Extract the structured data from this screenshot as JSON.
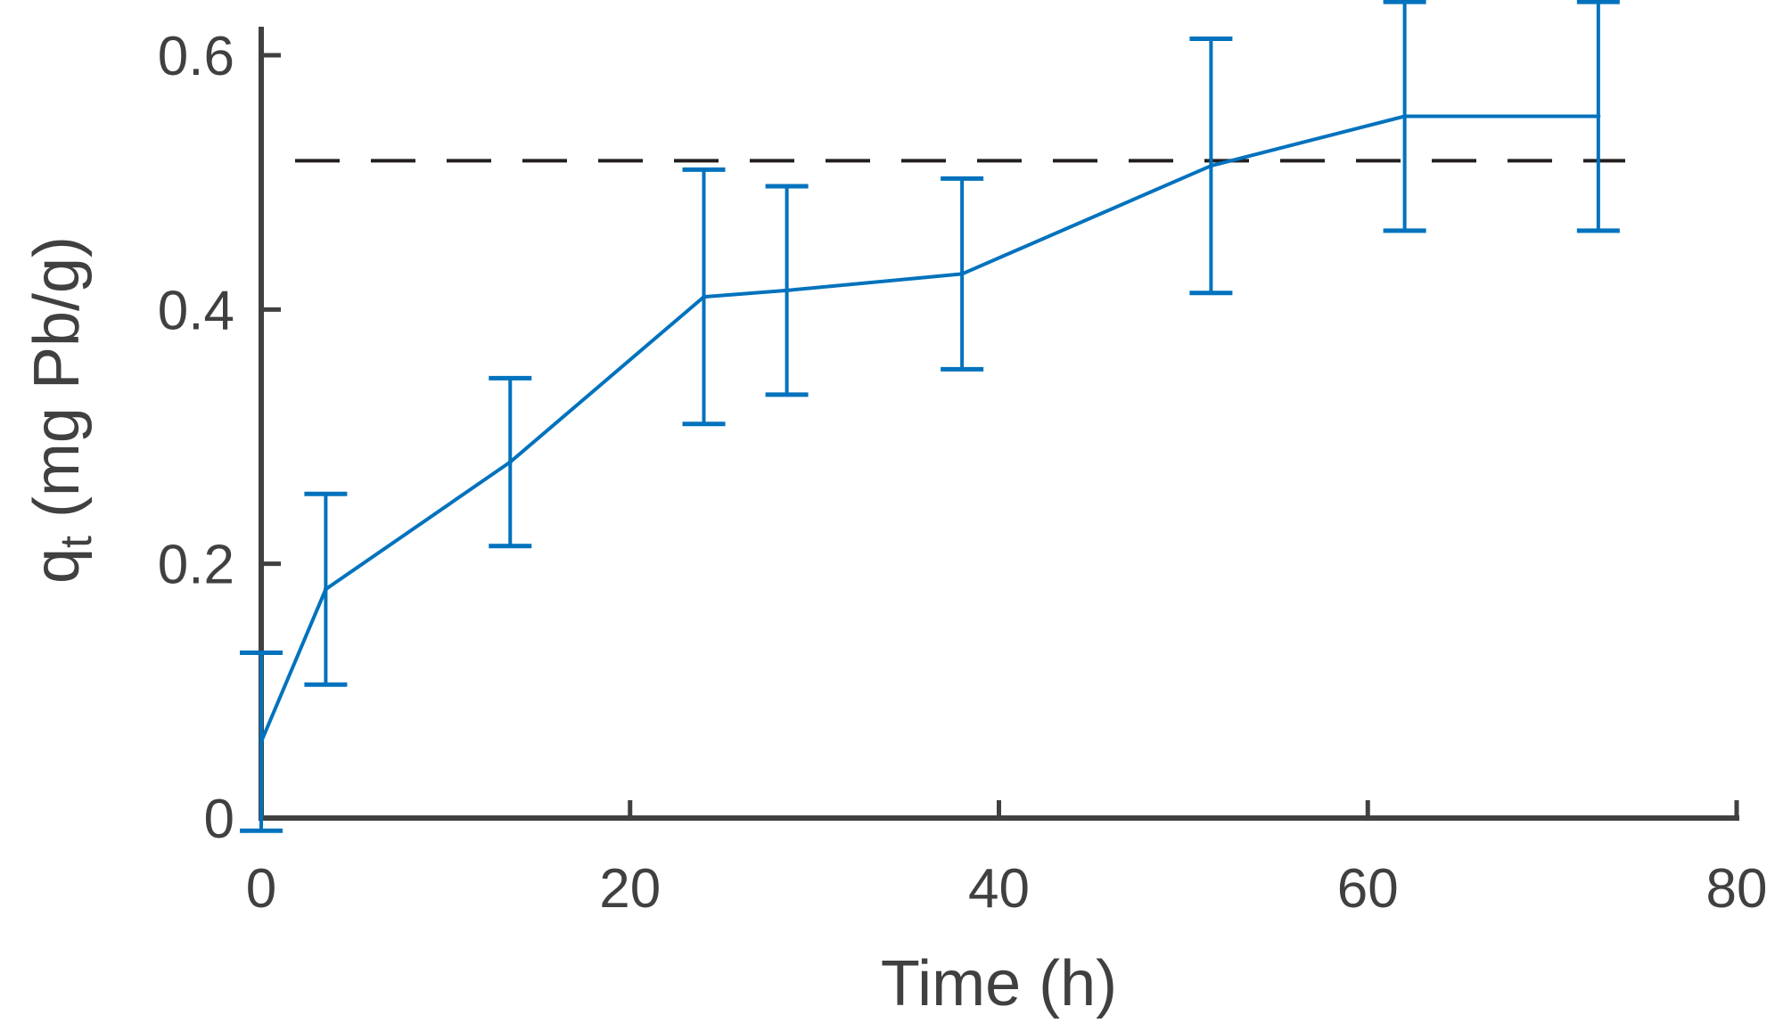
{
  "chart_data": {
    "type": "line",
    "title": "",
    "xlabel": "Time (h)",
    "ylabel": {
      "symbol": "q",
      "subscript": "t",
      "units": " (mg Pb/g)"
    },
    "xlim": [
      0,
      80
    ],
    "ylim": [
      0,
      0.6
    ],
    "xticks": [
      0,
      20,
      40,
      60,
      80
    ],
    "yticks": [
      0,
      0.2,
      0.4,
      0.6
    ],
    "xtick_labels": [
      "0",
      "20",
      "40",
      "60",
      "80"
    ],
    "ytick_labels": [
      "0",
      "0.2",
      "0.4",
      "0.6"
    ],
    "grid": false,
    "series": [
      {
        "name": "q_t",
        "color": "#0072BD",
        "x": [
          0,
          3.5,
          13.5,
          24,
          28.5,
          38,
          51.5,
          62,
          72.5
        ],
        "values": [
          0.06,
          0.18,
          0.28,
          0.41,
          0.415,
          0.428,
          0.513,
          0.552,
          0.552
        ],
        "error": [
          0.07,
          0.075,
          0.066,
          0.1,
          0.082,
          0.075,
          0.1,
          0.09,
          0.09
        ]
      }
    ],
    "reference_lines": [
      {
        "type": "horizontal",
        "value": 0.517,
        "style": "dashed",
        "color": "#231F20"
      }
    ],
    "axis_color": "#404040"
  }
}
